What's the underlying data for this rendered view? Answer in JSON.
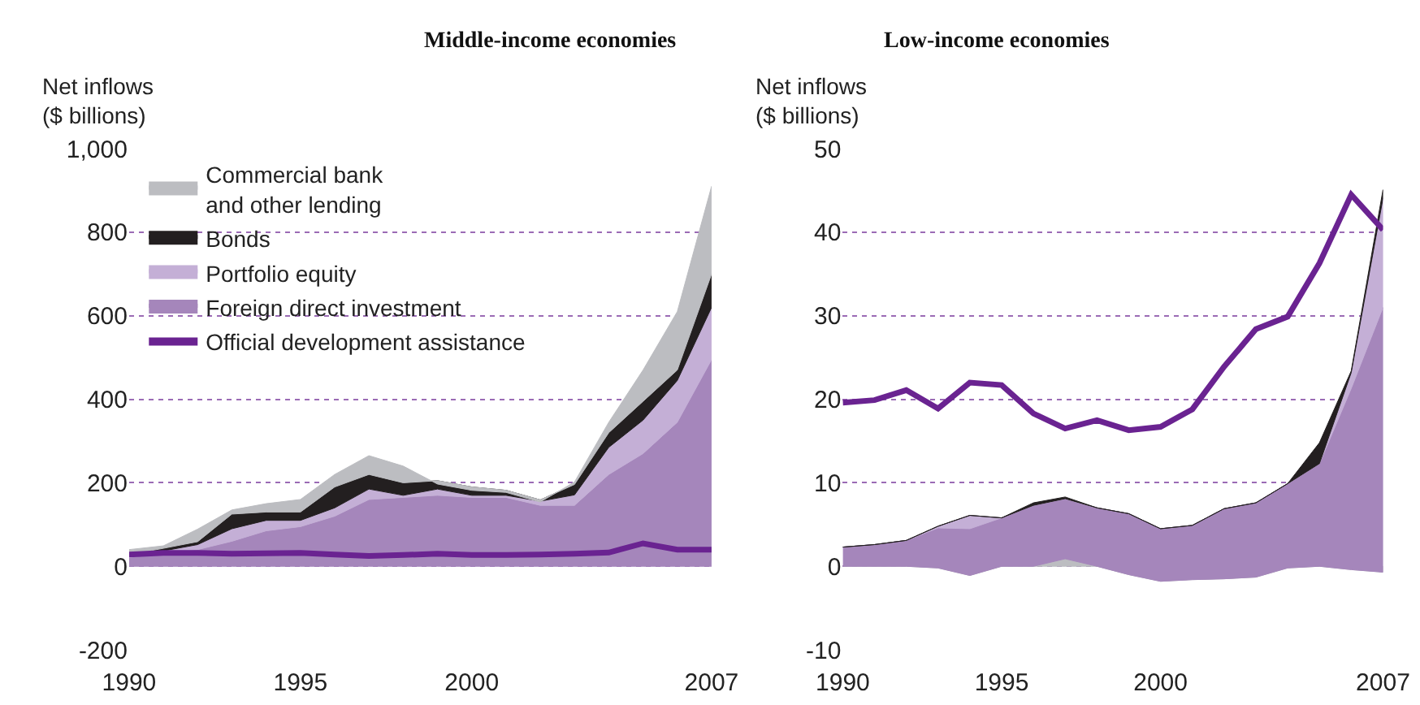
{
  "chart_data": [
    {
      "type": "area",
      "stacked": true,
      "title": "Middle-income economies",
      "ylabel": "Net inflows\n($ billions)",
      "x": [
        1990,
        1991,
        1992,
        1993,
        1994,
        1995,
        1996,
        1997,
        1998,
        1999,
        2000,
        2001,
        2002,
        2003,
        2004,
        2005,
        2006,
        2007
      ],
      "xlim": [
        1990,
        2007
      ],
      "xticks": [
        1990,
        1995,
        2000,
        2007
      ],
      "ylim": [
        -200,
        1000
      ],
      "yticks": [
        -200,
        0,
        200,
        400,
        600,
        800,
        {
          "value": 1000,
          "label": "1,000"
        }
      ],
      "grid": "y",
      "legend": "top left",
      "series": [
        {
          "name": "Foreign direct investment",
          "color": "#a586bb",
          "values": [
            21,
            34,
            40,
            60,
            85,
            95,
            120,
            160,
            165,
            170,
            165,
            165,
            146,
            146,
            220,
            270,
            345,
            495
          ]
        },
        {
          "name": "Portfolio equity",
          "color": "#c4afd6",
          "values": [
            3,
            3,
            12,
            30,
            25,
            15,
            20,
            25,
            5,
            15,
            5,
            5,
            10,
            25,
            65,
            80,
            100,
            125
          ]
        },
        {
          "name": "Bonds",
          "color": "#231f20",
          "values": [
            4,
            6,
            7,
            35,
            20,
            20,
            50,
            35,
            30,
            20,
            20,
            12,
            3,
            25,
            35,
            45,
            25,
            80
          ]
        },
        {
          "name": "Commercial bank\nand other lending",
          "color": "#bcbdc1",
          "values": [
            12,
            6,
            30,
            10,
            20,
            30,
            30,
            45,
            40,
            -8,
            -8,
            -5,
            -5,
            6,
            25,
            75,
            140,
            210
          ]
        },
        {
          "name": "Official development assistance",
          "type": "line",
          "color": "#6a2391",
          "values": [
            28,
            32,
            32,
            30,
            31,
            32,
            28,
            25,
            27,
            30,
            27,
            27,
            28,
            30,
            33,
            55,
            40,
            40
          ]
        }
      ]
    },
    {
      "type": "area",
      "stacked": true,
      "title": "Low-income economies",
      "ylabel": "Net inflows\n($ billions)",
      "x": [
        1990,
        1991,
        1992,
        1993,
        1994,
        1995,
        1996,
        1997,
        1998,
        1999,
        2000,
        2001,
        2002,
        2003,
        2004,
        2005,
        2006,
        2007
      ],
      "xlim": [
        1990,
        2007
      ],
      "xticks": [
        1990,
        1995,
        2000,
        2007
      ],
      "ylim": [
        -10,
        50
      ],
      "yticks": [
        -10,
        0,
        10,
        20,
        30,
        40,
        50
      ],
      "grid": "y",
      "legend": false,
      "series": [
        {
          "color": "#bcbdc1",
          "values": [
            0,
            0,
            0,
            -0.2,
            -1.1,
            0,
            0,
            0.9,
            0,
            -1.0,
            -1.8,
            -1.6,
            -1.5,
            -1.3,
            -0.2,
            0,
            -0.4,
            -0.7
          ]
        },
        {
          "color": "#a586bb",
          "values": [
            2.3,
            2.6,
            3.1,
            4.8,
            5.6,
            5.8,
            7.3,
            7.2,
            7.0,
            7.3,
            6.3,
            6.5,
            8.4,
            8.9,
            10.1,
            12.3,
            21.7,
            31.7
          ]
        },
        {
          "color": "#c4afd6",
          "values": [
            0,
            0,
            0,
            0.2,
            1.6,
            0,
            0,
            0,
            0,
            0,
            0,
            0,
            0,
            0,
            0,
            0,
            1.9,
            13.1
          ]
        },
        {
          "color": "#231f20",
          "values": [
            0,
            0,
            0,
            0,
            0,
            0,
            0.3,
            0.2,
            0,
            0,
            0,
            0,
            0,
            0,
            0,
            2.5,
            0.2,
            1.0
          ]
        },
        {
          "type": "line",
          "color": "#6a2391",
          "values": [
            19.6,
            19.9,
            21.1,
            18.9,
            22.0,
            21.7,
            18.3,
            16.5,
            17.5,
            16.3,
            16.7,
            18.8,
            23.9,
            28.4,
            29.9,
            36.3,
            44.5,
            40.3
          ]
        }
      ]
    }
  ]
}
